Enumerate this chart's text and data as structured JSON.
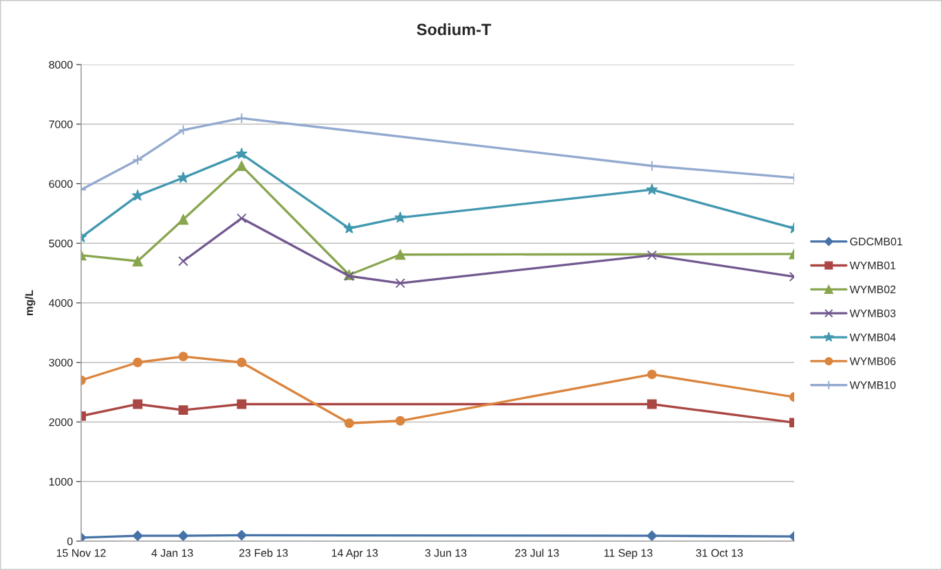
{
  "chart_data": {
    "type": "line",
    "title": "Sodium-T",
    "ylabel": "mg/L",
    "xlim": [
      "2012-11-15",
      "2013-12-11"
    ],
    "xticks": [
      {
        "value": "2012-11-15",
        "label": "15 Nov 12"
      },
      {
        "value": "2013-01-04",
        "label": "4 Jan 13"
      },
      {
        "value": "2013-02-23",
        "label": "23 Feb 13"
      },
      {
        "value": "2013-04-14",
        "label": "14 Apr 13"
      },
      {
        "value": "2013-06-03",
        "label": "3 Jun 13"
      },
      {
        "value": "2013-07-23",
        "label": "23 Jul 13"
      },
      {
        "value": "2013-09-11",
        "label": "11 Sep 13"
      },
      {
        "value": "2013-10-31",
        "label": "31 Oct 13"
      }
    ],
    "ylim": [
      0,
      8000
    ],
    "yticks": [
      0,
      1000,
      2000,
      3000,
      4000,
      5000,
      6000,
      7000,
      8000
    ],
    "grid": "y",
    "legend": "right",
    "line_style": "solid",
    "series": [
      {
        "name": "GDCMB01",
        "color": "#4572a7",
        "marker": "diamond",
        "x": [
          "2012-11-15",
          "2012-12-16",
          "2013-01-10",
          "2013-02-11",
          "2013-09-24",
          "2013-12-11"
        ],
        "values": [
          60,
          90,
          90,
          100,
          90,
          80
        ]
      },
      {
        "name": "WYMB01",
        "color": "#aa4643",
        "marker": "square",
        "x": [
          "2012-11-15",
          "2012-12-16",
          "2013-01-10",
          "2013-02-11",
          "2013-09-24",
          "2013-12-11"
        ],
        "values": [
          2100,
          2300,
          2200,
          2300,
          2300,
          1990
        ]
      },
      {
        "name": "WYMB02",
        "color": "#89a54e",
        "marker": "triangle",
        "x": [
          "2012-11-15",
          "2012-12-16",
          "2013-01-10",
          "2013-02-11",
          "2013-04-11",
          "2013-05-09",
          "2013-12-11"
        ],
        "values": [
          4800,
          4700,
          5400,
          6300,
          4470,
          4810,
          4820
        ]
      },
      {
        "name": "WYMB03",
        "color": "#71588f",
        "marker": "cross",
        "x": [
          "2013-01-10",
          "2013-02-11",
          "2013-04-11",
          "2013-05-09",
          "2013-09-24",
          "2013-12-11"
        ],
        "values": [
          4700,
          5420,
          4450,
          4330,
          4800,
          4440
        ]
      },
      {
        "name": "WYMB04",
        "color": "#4198af",
        "marker": "star",
        "x": [
          "2012-11-15",
          "2012-12-16",
          "2013-01-10",
          "2013-02-11",
          "2013-04-11",
          "2013-05-09",
          "2013-09-24",
          "2013-12-11"
        ],
        "values": [
          5100,
          5800,
          6100,
          6500,
          5250,
          5430,
          5900,
          5250
        ]
      },
      {
        "name": "WYMB06",
        "color": "#db843d",
        "marker": "circle",
        "x": [
          "2012-11-15",
          "2012-12-16",
          "2013-01-10",
          "2013-02-11",
          "2013-04-11",
          "2013-05-09",
          "2013-09-24",
          "2013-12-11"
        ],
        "values": [
          2700,
          3000,
          3100,
          3000,
          1980,
          2020,
          2800,
          2420
        ]
      },
      {
        "name": "WYMB10",
        "color": "#93a9cf",
        "marker": "plus",
        "x": [
          "2012-11-15",
          "2012-12-16",
          "2013-01-10",
          "2013-02-11",
          "2013-09-24",
          "2013-12-11"
        ],
        "values": [
          5900,
          6400,
          6900,
          7100,
          6300,
          6100
        ]
      }
    ]
  }
}
